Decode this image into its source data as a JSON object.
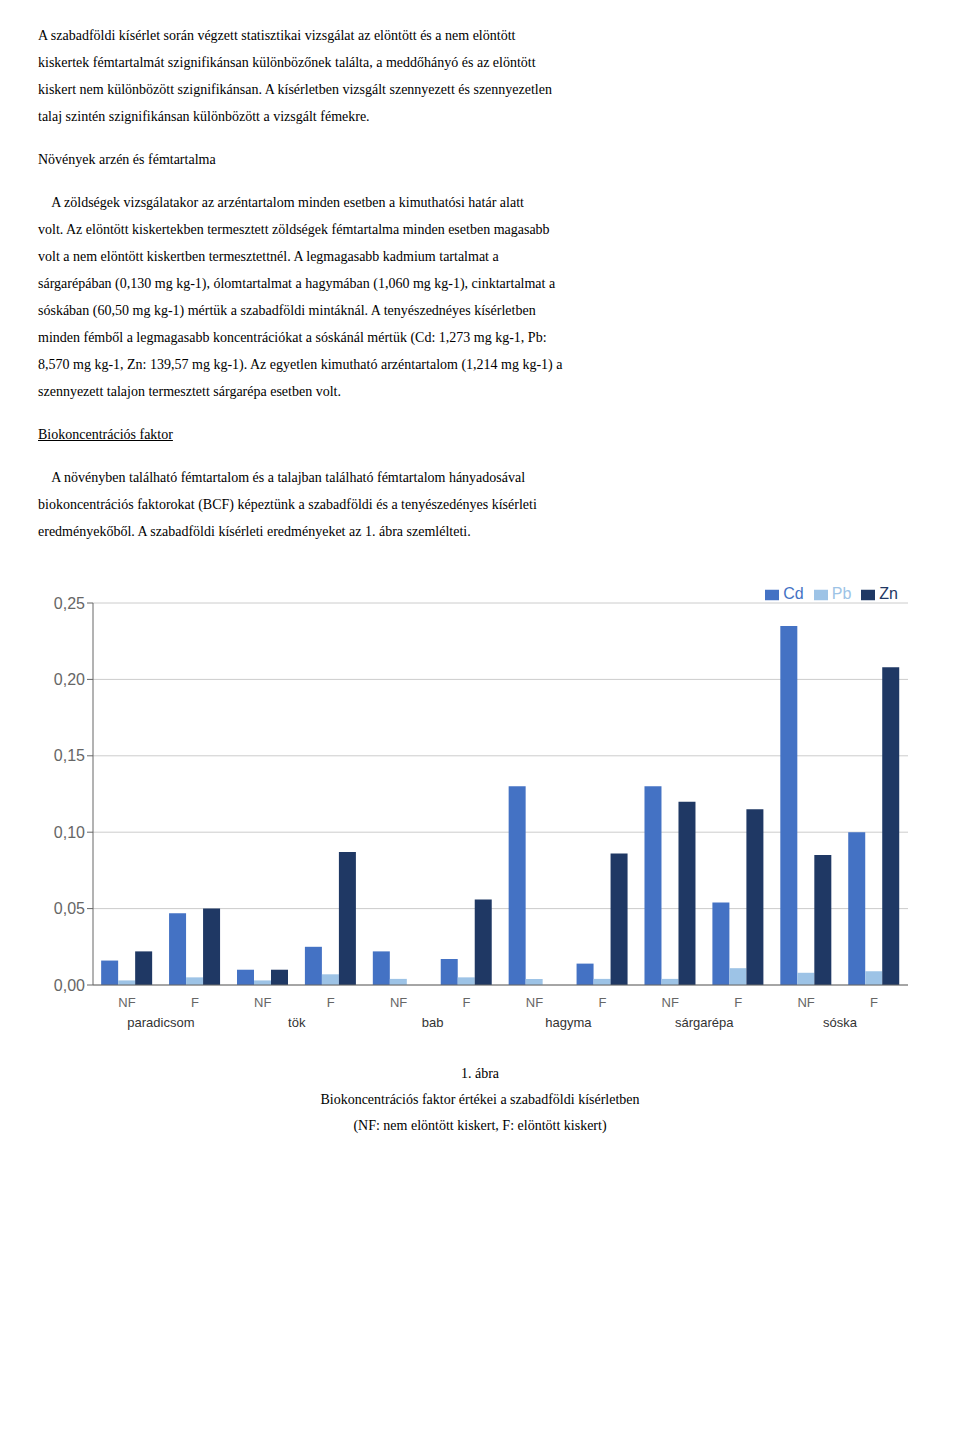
{
  "page_text": {
    "para1": [
      "A szabadföldi kísérlet során végzett statisztikai vizsgálat az elöntött és a nem elöntött",
      "kiskertek fémtartalmát szignifikánsan különbözőnek találta, a meddőhányó és az elöntött",
      "kiskert nem különbözött szignifikánsan. A kísérletben vizsgált szennyezett és szennyezetlen",
      "talaj szintén szignifikánsan különbözött a vizsgált fémekre."
    ],
    "section1_title": "Növények arzén és fémtartalma",
    "para2": [
      "    A zöldségek vizsgálatakor az arzéntartalom minden esetben a kimuthatósi határ alatt",
      "volt. Az elöntött kiskertekben termesztett zöldségek fémtartalma minden esetben magasabb",
      "volt a nem elöntött kiskertben termesztettnél. A legmagasabb kadmium tartalmat a",
      "sárgarépában (0,130 mg kg-1), ólomtartalmat a hagymában (1,060 mg kg-1), cinktartalmat a",
      "sóskában (60,50 mg kg-1) mértük a szabadföldi mintáknál. A tenyészednéyes kísérletben",
      "minden fémből a legmagasabb koncentrációkat a sóskánál mértük (Cd: 1,273 mg kg-1, Pb:",
      "8,570 mg kg-1, Zn: 139,57 mg kg-1). Az egyetlen kimutható arzéntartalom (1,214 mg kg-1) a",
      "szennyezett talajon termesztett sárgarépa esetben volt."
    ],
    "section2_title": "Biokoncentrációs faktor",
    "para3": [
      "    A növényben található fémtartalom és a talajban található fémtartalom hányadosával",
      "biokoncentrációs faktorokat (BCF) képeztünk a szabadföldi és a tenyészedényes kísérleti",
      "eredményekőből. A szabadföldi kísérleti eredményeket az 1. ábra szemlélteti."
    ]
  },
  "chart_data": {
    "type": "bar",
    "figure_label": "1. ábra",
    "title": "Biokoncentrációs faktor értékei a szabadföldi kísérletben",
    "subtitle": "(NF: nem elöntött kiskert, F: elöntött kiskert)",
    "categories": [
      "NF",
      "F",
      "NF",
      "F",
      "NF",
      "F",
      "NF",
      "F",
      "NF",
      "F",
      "NF",
      "F"
    ],
    "group_labels": [
      "paradicsom",
      "tök",
      "bab",
      "hagyma",
      "sárgarépa",
      "sóska"
    ],
    "series": [
      {
        "name": "Cd",
        "color": "#4472C4",
        "values": [
          0.016,
          0.047,
          0.01,
          0.025,
          0.022,
          0.017,
          0.13,
          0.014,
          0.13,
          0.054,
          0.235,
          0.1
        ]
      },
      {
        "name": "Pb",
        "color": "#9DC3E6",
        "values": [
          0.003,
          0.005,
          0.003,
          0.007,
          0.004,
          0.005,
          0.004,
          0.004,
          0.004,
          0.011,
          0.008,
          0.009
        ]
      },
      {
        "name": "Zn",
        "color": "#1F3864",
        "values": [
          0.022,
          0.05,
          0.01,
          0.087,
          0,
          0.056,
          0,
          0.086,
          0.12,
          0.115,
          0.085,
          0.208
        ]
      }
    ],
    "ylim": [
      0,
      0.25
    ],
    "yticks": [
      {
        "value": 0,
        "label": "0,00"
      },
      {
        "value": 0.05,
        "label": "0,05"
      },
      {
        "value": 0.1,
        "label": "0,10"
      },
      {
        "value": 0.15,
        "label": "0,15"
      },
      {
        "value": 0.2,
        "label": "0,20"
      },
      {
        "value": 0.25,
        "label": "0,25"
      }
    ],
    "grid": true,
    "legend": "upper right"
  }
}
